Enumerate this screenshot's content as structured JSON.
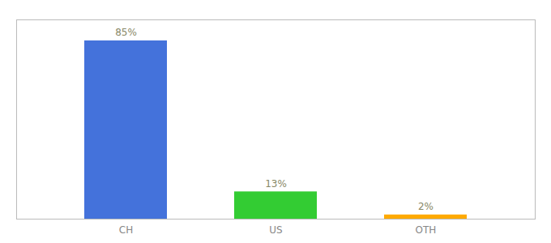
{
  "chart_data": {
    "type": "bar",
    "categories": [
      "CH",
      "US",
      "OTH"
    ],
    "values": [
      85,
      13,
      2
    ],
    "value_labels": [
      "85%",
      "13%",
      "2%"
    ],
    "colors": [
      "#4472db",
      "#33cc33",
      "#ffaa00"
    ],
    "ylim": [
      0,
      95
    ],
    "data_labels": true,
    "tick_labels": "x"
  }
}
